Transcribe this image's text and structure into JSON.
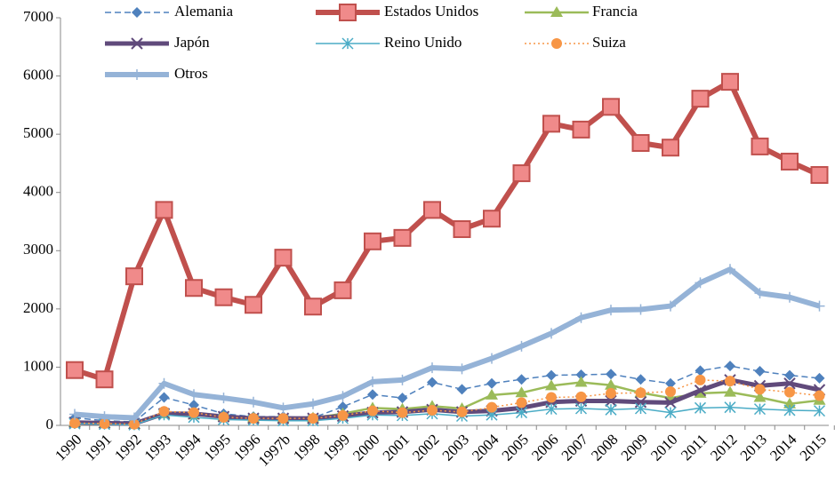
{
  "chart_data": {
    "type": "line",
    "categories": [
      "1990",
      "1991",
      "1992",
      "1993",
      "1994",
      "1995",
      "1996",
      "1997b",
      "1998",
      "1999",
      "2000",
      "2001",
      "2002",
      "2003",
      "2004",
      "2005",
      "2006",
      "2007",
      "2008",
      "2009",
      "2010",
      "2011",
      "2012",
      "2013",
      "2014",
      "2015"
    ],
    "ylim": [
      0,
      7000
    ],
    "yticks": [
      0,
      1000,
      2000,
      3000,
      4000,
      5000,
      6000,
      7000
    ],
    "grid": false,
    "legend": "top",
    "series": [
      {
        "name": "Alemania",
        "color": "#4f81bd",
        "line_width": 1.5,
        "dash": "dashed",
        "marker": "diamond",
        "values": [
          130,
          80,
          60,
          480,
          350,
          200,
          150,
          150,
          130,
          320,
          530,
          470,
          740,
          620,
          720,
          790,
          860,
          870,
          880,
          790,
          720,
          940,
          1020,
          930,
          860,
          810
        ]
      },
      {
        "name": "Estados Unidos",
        "color": "#c0504d",
        "line_width": 6,
        "dash": "solid",
        "marker": "square",
        "values": [
          950,
          790,
          2560,
          3700,
          2360,
          2200,
          2070,
          2880,
          2040,
          2320,
          3160,
          3220,
          3700,
          3370,
          3550,
          4330,
          5180,
          5080,
          5470,
          4850,
          4770,
          5610,
          5900,
          4790,
          4530,
          4300
        ]
      },
      {
        "name": "Francia",
        "color": "#9bbb59",
        "line_width": 2.5,
        "dash": "solid",
        "marker": "triangle",
        "values": [
          50,
          30,
          20,
          200,
          180,
          150,
          130,
          120,
          130,
          200,
          300,
          280,
          330,
          290,
          520,
          560,
          680,
          740,
          690,
          560,
          470,
          550,
          570,
          480,
          370,
          430
        ]
      },
      {
        "name": "Japón",
        "color": "#604a7b",
        "line_width": 5,
        "dash": "solid",
        "marker": "x",
        "values": [
          50,
          40,
          30,
          200,
          200,
          150,
          120,
          120,
          120,
          160,
          220,
          230,
          270,
          230,
          250,
          300,
          400,
          420,
          420,
          400,
          390,
          600,
          780,
          680,
          720,
          610
        ]
      },
      {
        "name": "Reino Unido",
        "color": "#4bacc6",
        "line_width": 1.5,
        "dash": "solid",
        "marker": "star",
        "values": [
          30,
          20,
          10,
          180,
          140,
          100,
          90,
          80,
          80,
          120,
          180,
          170,
          200,
          160,
          180,
          220,
          280,
          290,
          270,
          290,
          220,
          300,
          310,
          280,
          260,
          250
        ]
      },
      {
        "name": "Suiza",
        "color": "#f79646",
        "line_width": 1.5,
        "dash": "dotted",
        "marker": "circle",
        "values": [
          40,
          30,
          20,
          240,
          220,
          140,
          120,
          120,
          120,
          170,
          250,
          220,
          260,
          230,
          310,
          390,
          480,
          490,
          550,
          560,
          580,
          780,
          760,
          620,
          570,
          510
        ]
      },
      {
        "name": "Otros",
        "color": "#95b3d7",
        "line_width": 6,
        "dash": "solid",
        "marker": "plus",
        "values": [
          190,
          150,
          130,
          720,
          530,
          470,
          400,
          300,
          370,
          500,
          750,
          780,
          990,
          970,
          1150,
          1360,
          1580,
          1850,
          1980,
          1990,
          2050,
          2450,
          2680,
          2270,
          2200,
          2050
        ]
      }
    ]
  }
}
